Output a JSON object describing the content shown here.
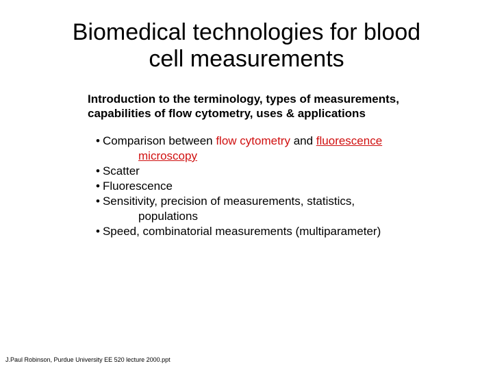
{
  "title_line1": "Biomedical technologies for blood",
  "title_line2": "cell measurements",
  "subtitle": "Introduction to the terminology, types of measurements, capabilities of flow cytometry, uses & applications",
  "bullets": {
    "b1_pre": "Comparison between ",
    "b1_red1": "flow cytometry",
    "b1_mid": " and ",
    "b1_red2": "fluorescence",
    "b1_cont_red": "microscopy",
    "b2": "Scatter",
    "b3": "Fluorescence",
    "b4": "Sensitivity, precision of measurements, statistics,",
    "b4_cont": "populations",
    "b5": "Speed, combinatorial measurements (multiparameter)"
  },
  "footer": "J.Paul Robinson, Purdue University  EE 520 lecture 2000.ppt",
  "colors": {
    "text": "#000000",
    "accent": "#d01010",
    "background": "#ffffff"
  },
  "fontsizes": {
    "title": 34,
    "subtitle": 17,
    "body": 17,
    "footer": 9
  }
}
